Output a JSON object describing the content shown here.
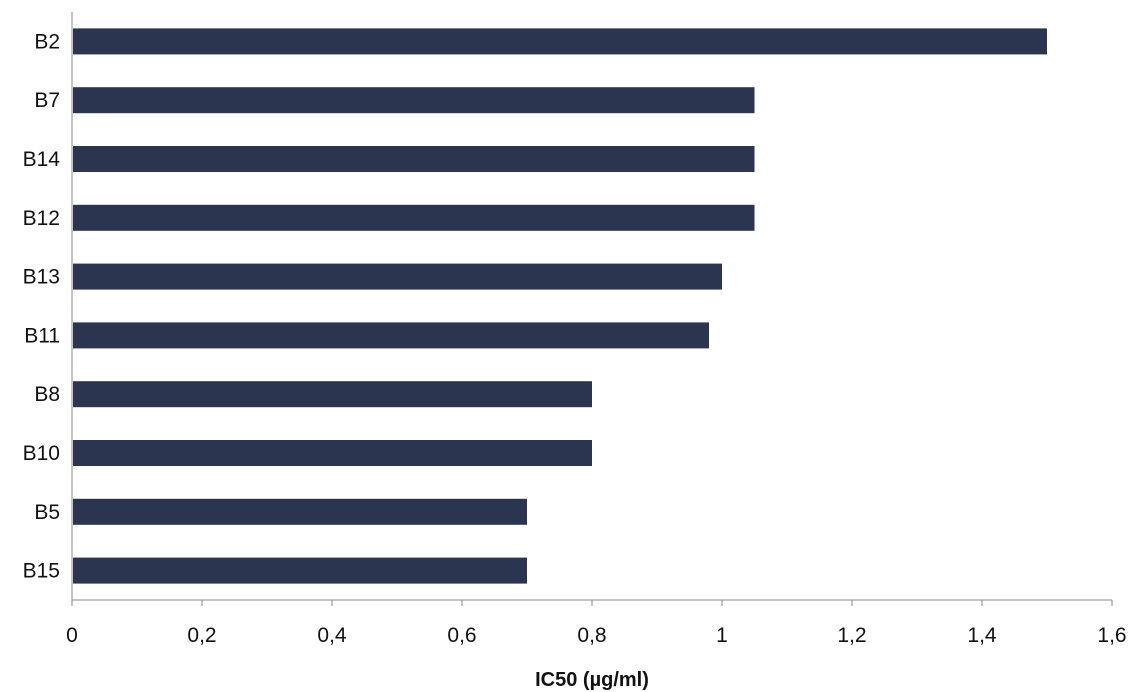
{
  "chart_data": {
    "type": "bar",
    "orientation": "horizontal",
    "categories": [
      "B2",
      "B7",
      "B14",
      "B12",
      "B13",
      "B11",
      "B8",
      "B10",
      "B5",
      "B15"
    ],
    "values": [
      1.5,
      1.05,
      1.05,
      1.05,
      1.0,
      0.98,
      0.8,
      0.8,
      0.7,
      0.7
    ],
    "xlabel": "IC50 (µg/ml)",
    "ylabel": "",
    "xlim": [
      0,
      1.6
    ],
    "xticks": [
      0,
      0.2,
      0.4,
      0.6,
      0.8,
      1.0,
      1.2,
      1.4,
      1.6
    ],
    "xtick_labels": [
      "0",
      "0,2",
      "0,4",
      "0,6",
      "0,8",
      "1",
      "1,2",
      "1,4",
      "1,6"
    ],
    "grid": false,
    "legend": "none",
    "bar_color": "#2b3550"
  }
}
